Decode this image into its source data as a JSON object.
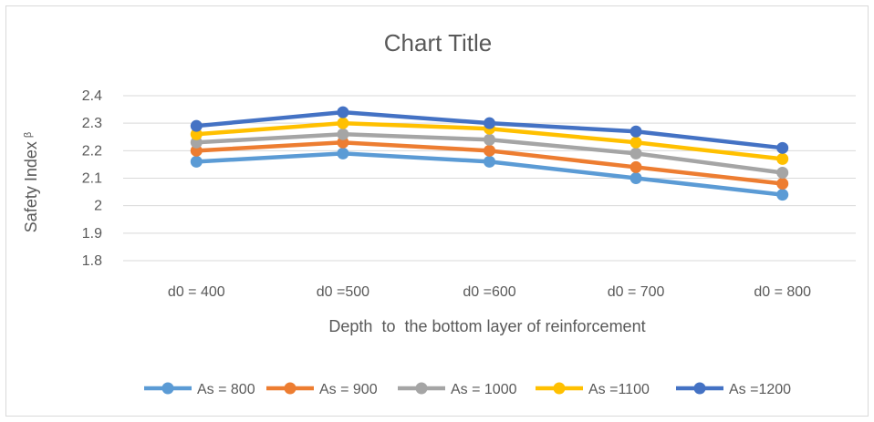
{
  "chart_data": {
    "type": "line",
    "title": "Chart Title",
    "xlabel": "Depth  to  the bottom layer of reinforcement",
    "ylabel": "Safety Index",
    "ylabel_symbol": "β",
    "categories": [
      "d0 = 400",
      "d0 =500",
      "d0 =600",
      "d0 = 700",
      "d0 = 800"
    ],
    "ylim": [
      1.8,
      2.4
    ],
    "yticks": [
      "1.8",
      "1.9",
      "2",
      "2.1",
      "2.2",
      "2.3",
      "2.4"
    ],
    "grid": true,
    "legend_position": "bottom",
    "series": [
      {
        "name": "As = 800",
        "color": "#5b9bd5",
        "values": [
          2.16,
          2.19,
          2.16,
          2.1,
          2.04
        ]
      },
      {
        "name": "As = 900",
        "color": "#ed7d31",
        "values": [
          2.2,
          2.23,
          2.2,
          2.14,
          2.08
        ]
      },
      {
        "name": "As = 1000",
        "color": "#a5a5a5",
        "values": [
          2.23,
          2.26,
          2.24,
          2.19,
          2.12
        ]
      },
      {
        "name": "As =1100",
        "color": "#ffc000",
        "values": [
          2.26,
          2.3,
          2.28,
          2.23,
          2.17
        ]
      },
      {
        "name": "As =1200",
        "color": "#4472c4",
        "values": [
          2.29,
          2.34,
          2.3,
          2.27,
          2.21
        ]
      }
    ]
  }
}
